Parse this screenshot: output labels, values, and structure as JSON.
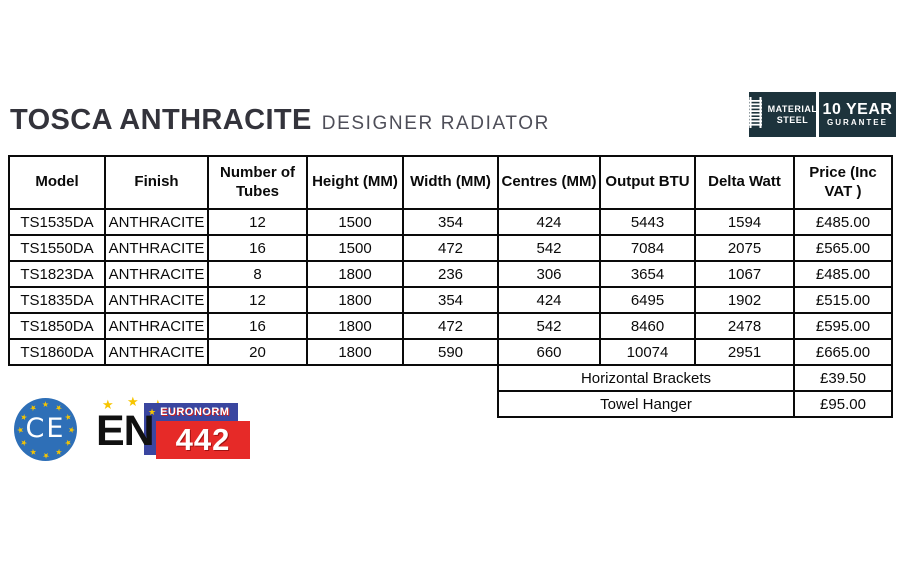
{
  "header": {
    "title": "TOSCA ANTHRACITE",
    "subtitle": "DESIGNER RADIATOR",
    "badges": {
      "material": {
        "line1": "MATERIAL",
        "line2": "STEEL",
        "icon": "radiator-steel-icon",
        "bg": "#1d333c"
      },
      "guarantee": {
        "line1": "10 YEAR",
        "line2": "GURANTEE",
        "bg": "#1d333c"
      }
    }
  },
  "table": {
    "columns": [
      "Model",
      "Finish",
      "Number of Tubes",
      "Height (MM)",
      "Width (MM)",
      "Centres (MM)",
      "Output BTU",
      "Delta Watt",
      "Price (Inc VAT )"
    ],
    "rows": [
      [
        "TS1535DA",
        "ANTHRACITE",
        "12",
        "1500",
        "354",
        "424",
        "5443",
        "1594",
        "£485.00"
      ],
      [
        "TS1550DA",
        "ANTHRACITE",
        "16",
        "1500",
        "472",
        "542",
        "7084",
        "2075",
        "£565.00"
      ],
      [
        "TS1823DA",
        "ANTHRACITE",
        "8",
        "1800",
        "236",
        "306",
        "3654",
        "1067",
        "£485.00"
      ],
      [
        "TS1835DA",
        "ANTHRACITE",
        "12",
        "1800",
        "354",
        "424",
        "6495",
        "1902",
        "£515.00"
      ],
      [
        "TS1850DA",
        "ANTHRACITE",
        "16",
        "1800",
        "472",
        "542",
        "8460",
        "2478",
        "£595.00"
      ],
      [
        "TS1860DA",
        "ANTHRACITE",
        "20",
        "1800",
        "590",
        "660",
        "10074",
        "2951",
        "£665.00"
      ]
    ],
    "extras": [
      {
        "label": "Horizontal Brackets",
        "price": "£39.50"
      },
      {
        "label": "Towel Hanger",
        "price": "£95.00"
      }
    ]
  },
  "footer": {
    "ce_mark": {
      "text": "CE",
      "circle_color": "#2e6fb7",
      "star_color": "#f7c500"
    },
    "en442": {
      "en": "EN",
      "euronorm": "EURONORM",
      "number": "442",
      "blue": "#3a46a0",
      "red": "#e62a28",
      "star_color": "#f7c500"
    }
  },
  "colors": {
    "table_border": "#0a0a0a",
    "title": "#33333b",
    "subtitle": "#4e4e58",
    "badge_bg": "#1d333c"
  }
}
